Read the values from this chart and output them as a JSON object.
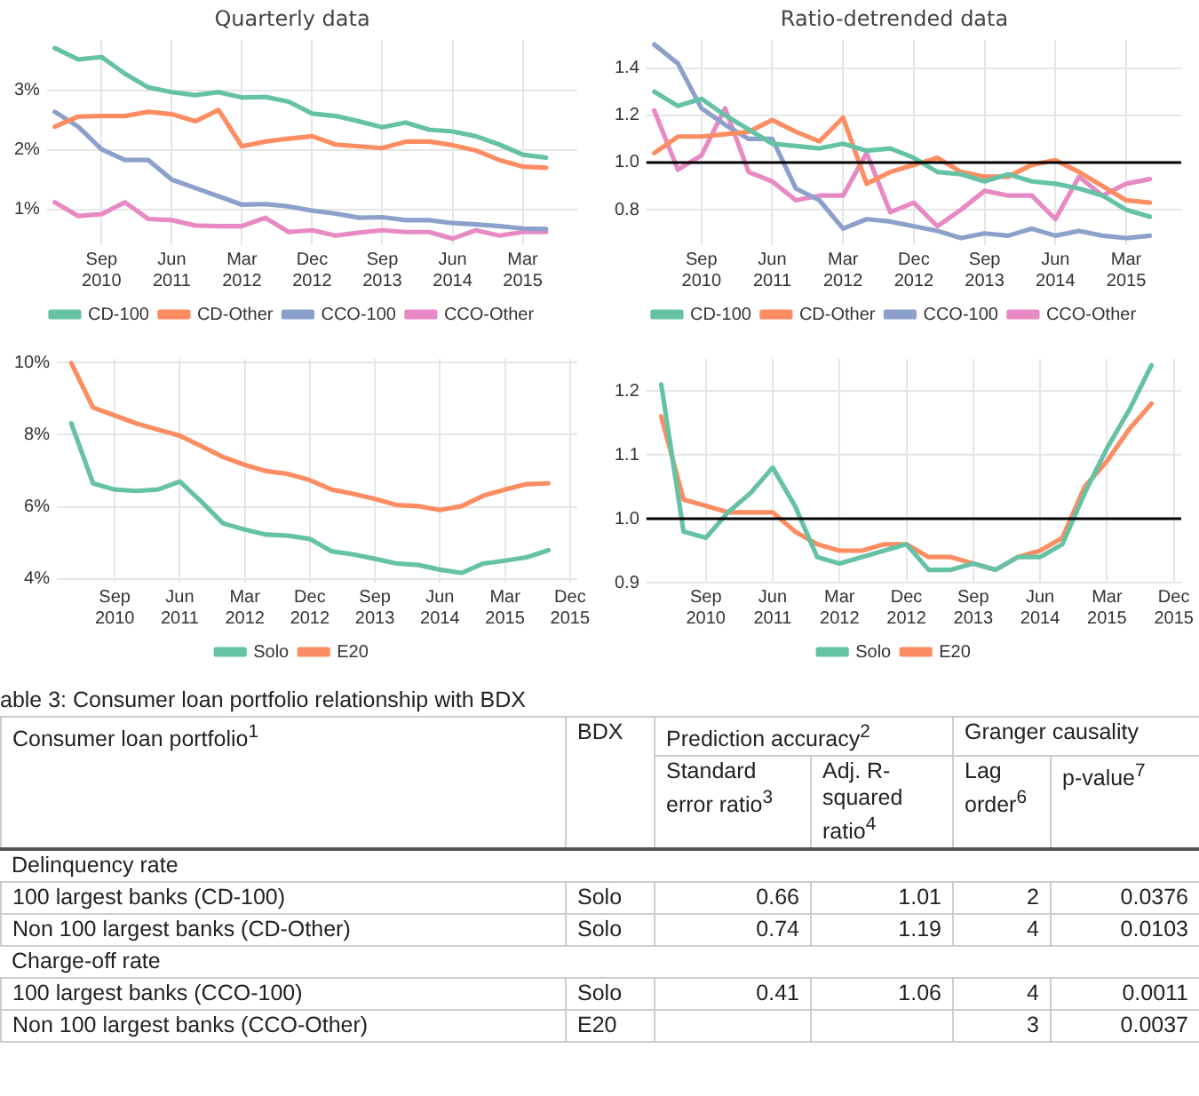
{
  "chart_data": [
    {
      "type": "line",
      "title": "Quarterly data",
      "x": [
        "2010-03",
        "2010-06",
        "2010-09",
        "2010-12",
        "2011-03",
        "2011-06",
        "2011-09",
        "2011-12",
        "2012-03",
        "2012-06",
        "2012-09",
        "2012-12",
        "2013-03",
        "2013-06",
        "2013-09",
        "2013-12",
        "2014-03",
        "2014-06",
        "2014-09",
        "2014-12",
        "2015-03",
        "2015-06"
      ],
      "series": [
        {
          "name": "CD-100",
          "color": "#66c2a5",
          "values": [
            3.71,
            3.52,
            3.56,
            3.28,
            3.05,
            2.97,
            2.92,
            2.97,
            2.88,
            2.89,
            2.81,
            2.61,
            2.57,
            2.48,
            2.38,
            2.46,
            2.34,
            2.31,
            2.23,
            2.09,
            1.92,
            1.87
          ]
        },
        {
          "name": "CD-Other",
          "color": "#fc8d62",
          "values": [
            2.39,
            2.56,
            2.57,
            2.57,
            2.64,
            2.6,
            2.48,
            2.67,
            2.06,
            2.14,
            2.19,
            2.23,
            2.09,
            2.06,
            2.03,
            2.14,
            2.14,
            2.08,
            1.99,
            1.83,
            1.72,
            1.7
          ]
        },
        {
          "name": "CCO-100",
          "color": "#8da0cb",
          "values": [
            2.64,
            2.39,
            2.01,
            1.83,
            1.83,
            1.5,
            1.36,
            1.22,
            1.08,
            1.09,
            1.05,
            0.98,
            0.93,
            0.86,
            0.87,
            0.82,
            0.82,
            0.77,
            0.75,
            0.72,
            0.68,
            0.67
          ]
        },
        {
          "name": "CCO-Other",
          "color": "#e78ac3",
          "values": [
            1.12,
            0.89,
            0.92,
            1.12,
            0.84,
            0.82,
            0.73,
            0.72,
            0.72,
            0.86,
            0.62,
            0.65,
            0.56,
            0.61,
            0.65,
            0.62,
            0.62,
            0.51,
            0.65,
            0.56,
            0.62,
            0.62
          ]
        }
      ],
      "xlim": [
        "2010-02",
        "2015-10"
      ],
      "xticks": [
        {
          "value": "2010-09",
          "label": "Sep 2010"
        },
        {
          "value": "2011-06",
          "label": "Jun 2011"
        },
        {
          "value": "2012-03",
          "label": "Mar 2012"
        },
        {
          "value": "2012-12",
          "label": "Dec 2012"
        },
        {
          "value": "2013-09",
          "label": "Sep 2013"
        },
        {
          "value": "2014-06",
          "label": "Jun 2014"
        },
        {
          "value": "2015-03",
          "label": "Mar 2015"
        }
      ],
      "ylim": [
        0.4,
        3.85
      ],
      "yticks": [
        {
          "value": 1,
          "label": "1%"
        },
        {
          "value": 2,
          "label": "2%"
        },
        {
          "value": 3,
          "label": "3%"
        }
      ],
      "grid": true,
      "legend": "bottom",
      "marker": "none"
    },
    {
      "type": "line",
      "title": "Ratio-detrended data",
      "x": [
        "2010-03",
        "2010-06",
        "2010-09",
        "2010-12",
        "2011-03",
        "2011-06",
        "2011-09",
        "2011-12",
        "2012-03",
        "2012-06",
        "2012-09",
        "2012-12",
        "2013-03",
        "2013-06",
        "2013-09",
        "2013-12",
        "2014-03",
        "2014-06",
        "2014-09",
        "2014-12",
        "2015-03",
        "2015-06"
      ],
      "series": [
        {
          "name": "CD-100",
          "color": "#66c2a5",
          "values": [
            1.3,
            1.24,
            1.27,
            1.2,
            1.14,
            1.08,
            1.07,
            1.06,
            1.08,
            1.05,
            1.06,
            1.02,
            0.96,
            0.95,
            0.92,
            0.95,
            0.92,
            0.91,
            0.89,
            0.86,
            0.8,
            0.77
          ]
        },
        {
          "name": "CD-Other",
          "color": "#fc8d62",
          "values": [
            1.04,
            1.11,
            1.11,
            1.12,
            1.13,
            1.18,
            1.13,
            1.09,
            1.19,
            0.91,
            0.96,
            0.99,
            1.02,
            0.96,
            0.94,
            0.94,
            0.99,
            1.01,
            0.96,
            0.9,
            0.84,
            0.83
          ]
        },
        {
          "name": "CCO-100",
          "color": "#8da0cb",
          "values": [
            1.5,
            1.42,
            1.23,
            1.16,
            1.1,
            1.1,
            0.89,
            0.84,
            0.72,
            0.76,
            0.75,
            0.73,
            0.71,
            0.68,
            0.7,
            0.69,
            0.72,
            0.69,
            0.71,
            0.69,
            0.68,
            0.69
          ]
        },
        {
          "name": "CCO-Other",
          "color": "#e78ac3",
          "values": [
            1.22,
            0.97,
            1.03,
            1.23,
            0.96,
            0.92,
            0.84,
            0.86,
            0.86,
            1.04,
            0.79,
            0.83,
            0.73,
            0.8,
            0.88,
            0.86,
            0.86,
            0.76,
            0.94,
            0.86,
            0.91,
            0.93
          ]
        }
      ],
      "xlim": [
        "2010-02",
        "2015-10"
      ],
      "xticks": [
        {
          "value": "2010-09",
          "label": "Sep 2010"
        },
        {
          "value": "2011-06",
          "label": "Jun 2011"
        },
        {
          "value": "2012-03",
          "label": "Mar 2012"
        },
        {
          "value": "2012-12",
          "label": "Dec 2012"
        },
        {
          "value": "2013-09",
          "label": "Sep 2013"
        },
        {
          "value": "2014-06",
          "label": "Jun 2014"
        },
        {
          "value": "2015-03",
          "label": "Mar 2015"
        }
      ],
      "ylim": [
        0.65,
        1.52
      ],
      "yticks": [
        0.8,
        {
          "value": 1,
          "label": "1.0"
        },
        1.2,
        1.4
      ],
      "ref_lines": [
        {
          "axis": "y",
          "value": 1,
          "color": "#000000"
        }
      ],
      "grid": true,
      "legend": "bottom",
      "marker": "none"
    },
    {
      "type": "line",
      "x": [
        "2010-03",
        "2010-06",
        "2010-09",
        "2010-12",
        "2011-03",
        "2011-06",
        "2011-09",
        "2011-12",
        "2012-03",
        "2012-06",
        "2012-09",
        "2012-12",
        "2013-03",
        "2013-06",
        "2013-09",
        "2013-12",
        "2014-03",
        "2014-06",
        "2014-09",
        "2014-12",
        "2015-03",
        "2015-06",
        "2015-09"
      ],
      "series": [
        {
          "name": "Solo",
          "color": "#66c2a5",
          "values": [
            8.31,
            6.65,
            6.48,
            6.44,
            6.48,
            6.7,
            6.14,
            5.54,
            5.37,
            5.23,
            5.2,
            5.11,
            4.77,
            4.68,
            4.56,
            4.43,
            4.39,
            4.26,
            4.17,
            4.43,
            4.51,
            4.6,
            4.8
          ]
        },
        {
          "name": "E20",
          "color": "#fc8d62",
          "values": [
            9.98,
            8.75,
            8.53,
            8.31,
            8.14,
            7.97,
            7.68,
            7.38,
            7.16,
            6.99,
            6.91,
            6.74,
            6.48,
            6.36,
            6.22,
            6.05,
            6.02,
            5.91,
            6.02,
            6.31,
            6.48,
            6.63,
            6.65
          ]
        }
      ],
      "xlim": [
        "2010-01",
        "2016-01"
      ],
      "xticks": [
        {
          "value": "2010-09",
          "label": "Sep 2010"
        },
        {
          "value": "2011-06",
          "label": "Jun 2011"
        },
        {
          "value": "2012-03",
          "label": "Mar 2012"
        },
        {
          "value": "2012-12",
          "label": "Dec 2012"
        },
        {
          "value": "2013-09",
          "label": "Sep 2013"
        },
        {
          "value": "2014-06",
          "label": "Jun 2014"
        },
        {
          "value": "2015-03",
          "label": "Mar 2015"
        },
        {
          "value": "2015-12",
          "label": "Dec 2015"
        }
      ],
      "ylim": [
        3.9,
        10.1
      ],
      "yticks": [
        {
          "value": 4,
          "label": "4%"
        },
        {
          "value": 6,
          "label": "6%"
        },
        {
          "value": 8,
          "label": "8%"
        },
        {
          "value": 10,
          "label": "10%"
        }
      ],
      "grid": true,
      "legend": "bottom",
      "marker": "none"
    },
    {
      "type": "line",
      "x": [
        "2010-03",
        "2010-06",
        "2010-09",
        "2010-12",
        "2011-03",
        "2011-06",
        "2011-09",
        "2011-12",
        "2012-03",
        "2012-06",
        "2012-09",
        "2012-12",
        "2013-03",
        "2013-06",
        "2013-09",
        "2013-12",
        "2014-03",
        "2014-06",
        "2014-09",
        "2014-12",
        "2015-03",
        "2015-06",
        "2015-09"
      ],
      "series": [
        {
          "name": "Solo",
          "color": "#66c2a5",
          "values": [
            1.21,
            0.98,
            0.97,
            1.01,
            1.04,
            1.08,
            1.02,
            0.94,
            0.93,
            0.94,
            0.95,
            0.96,
            0.92,
            0.92,
            0.93,
            0.92,
            0.94,
            0.94,
            0.96,
            1.04,
            1.11,
            1.17,
            1.24
          ]
        },
        {
          "name": "E20",
          "color": "#fc8d62",
          "values": [
            1.16,
            1.03,
            1.02,
            1.01,
            1.01,
            1.01,
            0.98,
            0.96,
            0.95,
            0.95,
            0.96,
            0.96,
            0.94,
            0.94,
            0.93,
            0.92,
            0.94,
            0.95,
            0.97,
            1.05,
            1.09,
            1.14,
            1.18
          ]
        }
      ],
      "xlim": [
        "2010-01",
        "2016-01"
      ],
      "xticks": [
        {
          "value": "2010-09",
          "label": "Sep 2010"
        },
        {
          "value": "2011-06",
          "label": "Jun 2011"
        },
        {
          "value": "2012-03",
          "label": "Mar 2012"
        },
        {
          "value": "2012-12",
          "label": "Dec 2012"
        },
        {
          "value": "2013-09",
          "label": "Sep 2013"
        },
        {
          "value": "2014-06",
          "label": "Jun 2014"
        },
        {
          "value": "2015-03",
          "label": "Mar 2015"
        },
        {
          "value": "2015-12",
          "label": "Dec 2015"
        }
      ],
      "ylim": [
        0.9,
        1.25
      ],
      "yticks": [
        {
          "value": 0.9,
          "label": "0.9"
        },
        {
          "value": 1,
          "label": "1.0"
        },
        {
          "value": 1.1,
          "label": "1.1"
        },
        {
          "value": 1.2,
          "label": "1.2"
        }
      ],
      "ref_lines": [
        {
          "axis": "y",
          "value": 1,
          "color": "#000000"
        }
      ],
      "grid": true,
      "legend": "bottom",
      "marker": "none"
    },
    {
      "type": "other",
      "title": "able 3: Consumer loan portfolio relationship with BDX",
      "annotations": [
        "Consumer loan portfolio$^{1}$",
        "BDX",
        "Prediction accuracy$^{2}$",
        "Granger causality",
        "Standard error ratio$^{3}$",
        "Adj. R-squared ratio$^{4}$",
        "Lag order$^{6}$",
        "p-value$^{7}$",
        "Delinquency rate",
        "100 largest banks (CD-100)",
        "Solo",
        "0.66",
        "1.01",
        "2",
        "0.0376",
        "Non 100 largest banks (CD-Other)",
        "Solo",
        "0.74",
        "1.19",
        "4",
        "0.0103",
        "Charge-off rate",
        "100 largest banks (CCO-100)",
        "Solo",
        "0.41",
        "1.06",
        "4",
        "0.0011",
        "Non 100 largest banks (CCO-Other)",
        "E20",
        "3",
        "0.0037"
      ]
    }
  ]
}
